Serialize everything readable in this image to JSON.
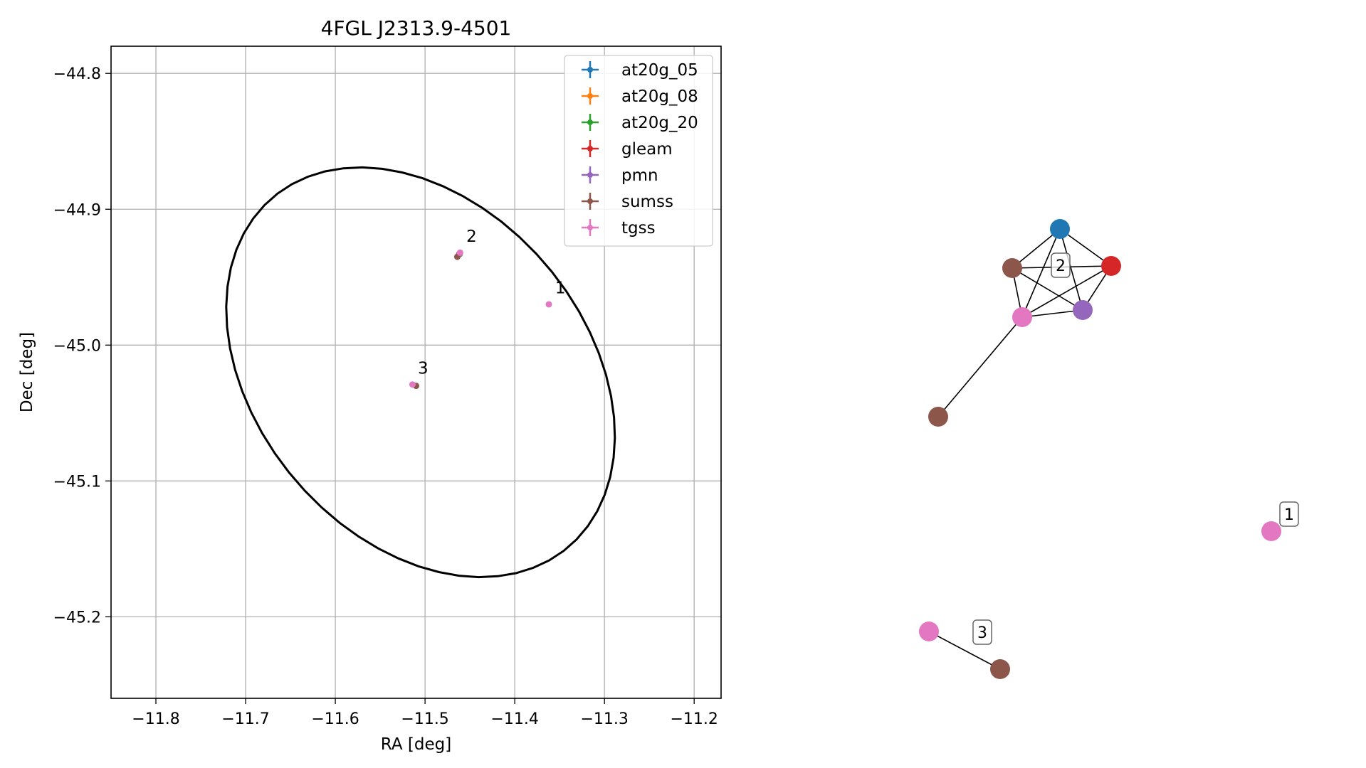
{
  "chart_data": [
    {
      "type": "scatter",
      "title": "4FGL J2313.9-4501",
      "xlabel": "RA [deg]",
      "ylabel": "Dec [deg]",
      "xlim": [
        -11.85,
        -11.17
      ],
      "ylim": [
        -45.26,
        -44.78
      ],
      "xticks": [
        -11.8,
        -11.7,
        -11.6,
        -11.5,
        -11.4,
        -11.3,
        -11.2
      ],
      "xtick_labels": [
        "−11.8",
        "−11.7",
        "−11.6",
        "−11.5",
        "−11.4",
        "−11.3",
        "−11.2"
      ],
      "yticks": [
        -44.8,
        -44.9,
        -45.0,
        -45.1,
        -45.2
      ],
      "ytick_labels": [
        "−44.8",
        "−44.9",
        "−45.0",
        "−45.1",
        "−45.2"
      ],
      "grid": true,
      "legend_position": "top-right",
      "ellipse": {
        "center": [
          -11.505,
          -45.02
        ],
        "semi_axes": [
          0.225,
          0.138
        ],
        "angle_deg": -20,
        "color": "#000000"
      },
      "series": [
        {
          "name": "at20g_05",
          "color": "#1f77b4",
          "points": [
            [
              -11.4615,
              -44.933
            ]
          ]
        },
        {
          "name": "at20g_08",
          "color": "#ff7f0e",
          "points": [
            [
              -11.4615,
              -44.933
            ]
          ]
        },
        {
          "name": "at20g_20",
          "color": "#2ca02c",
          "points": [
            [
              -11.4615,
              -44.933
            ]
          ]
        },
        {
          "name": "gleam",
          "color": "#d62728",
          "points": [
            [
              -11.461,
              -44.932
            ]
          ]
        },
        {
          "name": "pmn",
          "color": "#9467bd",
          "points": [
            [
              -11.462,
              -44.933
            ]
          ]
        },
        {
          "name": "sumss",
          "color": "#8c564b",
          "points": [
            [
              -11.464,
              -44.935
            ],
            [
              -11.51,
              -45.03
            ]
          ]
        },
        {
          "name": "tgss",
          "color": "#e377c2",
          "points": [
            [
              -11.461,
              -44.932
            ],
            [
              -11.362,
              -44.97
            ],
            [
              -11.514,
              -45.029
            ]
          ]
        }
      ],
      "annotations": [
        {
          "text": "2",
          "x": -11.454,
          "y": -44.924
        },
        {
          "text": "1",
          "x": -11.355,
          "y": -44.962
        },
        {
          "text": "3",
          "x": -11.508,
          "y": -45.021
        }
      ]
    },
    {
      "type": "network",
      "nodes": [
        {
          "id": "a",
          "color": "#1f77b4"
        },
        {
          "id": "b",
          "color": "#8c564b"
        },
        {
          "id": "c",
          "color": "#d62728"
        },
        {
          "id": "d",
          "color": "#e377c2"
        },
        {
          "id": "e",
          "color": "#9467bd"
        },
        {
          "id": "f",
          "color": "#8c564b"
        },
        {
          "id": "g",
          "color": "#e377c2"
        },
        {
          "id": "h",
          "color": "#e377c2"
        },
        {
          "id": "i",
          "color": "#8c564b"
        }
      ],
      "edges": [
        [
          "a",
          "b"
        ],
        [
          "a",
          "c"
        ],
        [
          "a",
          "d"
        ],
        [
          "a",
          "e"
        ],
        [
          "b",
          "c"
        ],
        [
          "b",
          "d"
        ],
        [
          "b",
          "e"
        ],
        [
          "c",
          "d"
        ],
        [
          "c",
          "e"
        ],
        [
          "d",
          "e"
        ],
        [
          "d",
          "f"
        ],
        [
          "h",
          "i"
        ]
      ],
      "labels": [
        {
          "text": "2"
        },
        {
          "text": "1"
        },
        {
          "text": "3"
        }
      ]
    }
  ]
}
